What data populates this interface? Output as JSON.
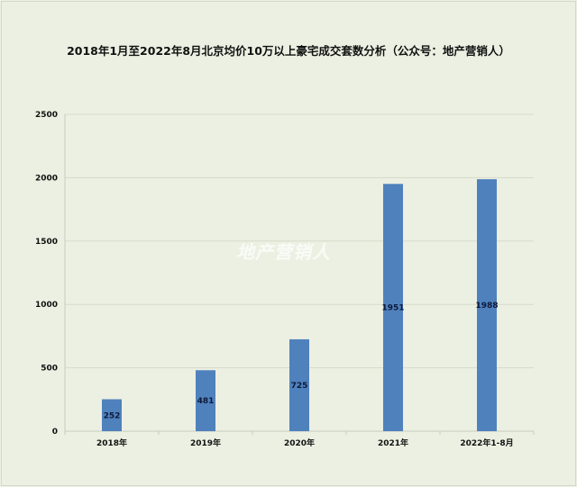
{
  "chart_data": {
    "type": "bar",
    "title": "2018年1月至2022年8月北京均价10万以上豪宅成交套数分析（公众号：地产营销人）",
    "categories": [
      "2018年",
      "2019年",
      "2020年",
      "2021年",
      "2022年1-8月"
    ],
    "values": [
      252,
      481,
      725,
      1951,
      1988
    ],
    "data_labels": [
      "252",
      "481",
      "725",
      "1951",
      "1988"
    ],
    "xlabel": "",
    "ylabel": "",
    "ylim": [
      0,
      2500
    ],
    "yticks": [
      "0",
      "500",
      "1000",
      "1500",
      "2000",
      "2500"
    ],
    "grid": true,
    "legend": "none",
    "bar_color": "#4f81bd",
    "background_color": "#ecf0e2"
  },
  "watermark": "地产营销人"
}
